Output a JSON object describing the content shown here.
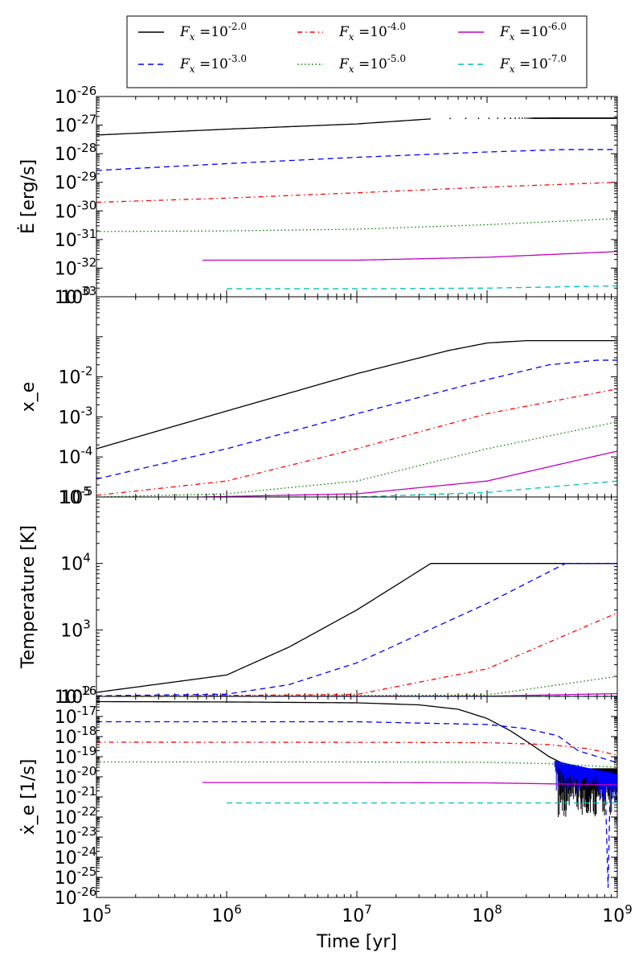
{
  "legend": {
    "placement": "top",
    "entries": [
      {
        "label": "F_x = 10^-2.0",
        "base": "10",
        "exp": "-2.0",
        "color": "#000000",
        "dash": "solid"
      },
      {
        "label": "F_x = 10^-3.0",
        "base": "10",
        "exp": "-3.0",
        "color": "#0000ff",
        "dash": "dashed"
      },
      {
        "label": "F_x = 10^-4.0",
        "base": "10",
        "exp": "-4.0",
        "color": "#ff0000",
        "dash": "dashdot"
      },
      {
        "label": "F_x = 10^-5.0",
        "base": "10",
        "exp": "-5.0",
        "color": "#008000",
        "dash": "dotted"
      },
      {
        "label": "F_x = 10^-6.0",
        "base": "10",
        "exp": "-6.0",
        "color": "#bf00bf",
        "dash": "solid"
      },
      {
        "label": "F_x = 10^-7.0",
        "base": "10",
        "exp": "-7.0",
        "color": "#00bfbf",
        "dash": "dashed"
      }
    ]
  },
  "chart_data": [
    {
      "type": "line",
      "x_scale": "log",
      "y_scale": "log",
      "xlabel": "",
      "ylabel": "Ė [erg/s]",
      "xlim": [
        100000,
        1000000000
      ],
      "ylim": [
        1e-33,
        1e-26
      ],
      "yticks": [
        {
          "base": "10",
          "exp": "-26",
          "value": -26
        },
        {
          "base": "10",
          "exp": "-27",
          "value": -27
        },
        {
          "base": "10",
          "exp": "-28",
          "value": -28
        },
        {
          "base": "10",
          "exp": "-29",
          "value": -29
        },
        {
          "base": "10",
          "exp": "-30",
          "value": -30
        },
        {
          "base": "10",
          "exp": "-31",
          "value": -31
        },
        {
          "base": "10",
          "exp": "-32",
          "value": -32
        },
        {
          "base": "10",
          "exp": "-33",
          "value": -33
        }
      ],
      "series": [
        {
          "name": "F_x = 10^-2.0",
          "x": [
            100000,
            1000000,
            10000000,
            37000000
          ],
          "y": [
            4.5e-28,
            7.2e-28,
            1.1e-27,
            1.65e-27
          ]
        },
        {
          "name": "F_x = 10^-2.0 (sparse)",
          "x": [
            52000000,
            100000000,
            200000000,
            400000000,
            700000000,
            1000000000
          ],
          "y": [
            1.7e-27,
            1.72e-27,
            1.74e-27,
            1.75e-27,
            1.75e-27,
            1.75e-27
          ]
        },
        {
          "name": "F_x = 10^-3.0",
          "x": [
            100000,
            1000000,
            10000000,
            100000000,
            400000000,
            1000000000
          ],
          "y": [
            2.6e-29,
            4.5e-29,
            7.5e-29,
            1.15e-28,
            1.4e-28,
            1.4e-28
          ]
        },
        {
          "name": "F_x = 10^-4.0",
          "x": [
            100000,
            1000000,
            10000000,
            100000000,
            1000000000
          ],
          "y": [
            2e-30,
            2.8e-30,
            4.3e-30,
            6.8e-30,
            1e-29
          ]
        },
        {
          "name": "F_x = 10^-5.0",
          "x": [
            100000,
            1000000,
            10000000,
            100000000,
            1000000000
          ],
          "y": [
            1.9e-31,
            2e-31,
            2.3e-31,
            3.3e-31,
            5.4e-31
          ]
        },
        {
          "name": "F_x = 10^-6.0",
          "x": [
            650000,
            10000000,
            100000000,
            1000000000
          ],
          "y": [
            1.9e-32,
            1.9e-32,
            2.4e-32,
            3.8e-32
          ]
        },
        {
          "name": "F_x = 10^-7.0",
          "x": [
            1000000,
            10000000,
            100000000,
            1000000000
          ],
          "y": [
            1.9e-33,
            1.9e-33,
            2e-33,
            2.4e-33
          ]
        }
      ]
    },
    {
      "type": "line",
      "x_scale": "log",
      "y_scale": "log",
      "xlabel": "",
      "ylabel": "x_e",
      "xlim": [
        100000,
        1000000000
      ],
      "ylim": [
        1e-05,
        1
      ],
      "yticks": [
        {
          "base": "10",
          "exp": "0",
          "value": 0
        },
        {
          "base": "10",
          "exp": "-2",
          "value": -2
        },
        {
          "base": "10",
          "exp": "-3",
          "value": -3
        },
        {
          "base": "10",
          "exp": "-4",
          "value": -4
        },
        {
          "base": "10",
          "exp": "-5",
          "value": -5
        }
      ],
      "series": [
        {
          "name": "F_x = 10^-2.0",
          "x": [
            100000,
            1000000,
            10000000,
            50000000,
            100000000,
            200000000,
            1000000000
          ],
          "y": [
            0.00016,
            0.0014,
            0.012,
            0.045,
            0.07,
            0.08,
            0.08
          ]
        },
        {
          "name": "F_x = 10^-3.0",
          "x": [
            100000,
            1000000,
            10000000,
            100000000,
            300000000,
            700000000,
            1000000000
          ],
          "y": [
            2.8e-05,
            0.00016,
            0.0012,
            0.0085,
            0.02,
            0.026,
            0.026
          ]
        },
        {
          "name": "F_x = 10^-4.0",
          "x": [
            100000,
            1000000,
            10000000,
            100000000,
            1000000000
          ],
          "y": [
            1.1e-05,
            2.5e-05,
            0.00016,
            0.0012,
            0.005
          ]
        },
        {
          "name": "F_x = 10^-5.0",
          "x": [
            100000,
            1000000,
            10000000,
            100000000,
            1000000000
          ],
          "y": [
            1e-05,
            1.2e-05,
            2.5e-05,
            0.00016,
            0.00075
          ]
        },
        {
          "name": "F_x = 10^-6.0",
          "x": [
            650000,
            10000000,
            100000000,
            1000000000
          ],
          "y": [
            1e-05,
            1.2e-05,
            2.5e-05,
            0.00014
          ]
        },
        {
          "name": "F_x = 10^-7.0",
          "x": [
            1000000,
            10000000,
            100000000,
            1000000000
          ],
          "y": [
            1e-05,
            1e-05,
            1.3e-05,
            2.5e-05
          ]
        }
      ]
    },
    {
      "type": "line",
      "x_scale": "log",
      "y_scale": "log",
      "xlabel": "",
      "ylabel": "Temperature [K]",
      "xlim": [
        100000,
        1000000000
      ],
      "ylim": [
        100,
        100000
      ],
      "yticks": [
        {
          "base": "10",
          "exp": "5",
          "value": 5
        },
        {
          "base": "10",
          "exp": "4",
          "value": 4
        },
        {
          "base": "10",
          "exp": "3",
          "value": 3
        },
        {
          "base": "10",
          "exp": "2",
          "value": 2
        }
      ],
      "series": [
        {
          "name": "F_x = 10^-2.0",
          "x": [
            100000,
            1000000,
            3000000,
            10000000,
            37000000,
            1000000000
          ],
          "y": [
            115,
            210,
            550,
            2000,
            10000,
            10000
          ]
        },
        {
          "name": "F_x = 10^-3.0",
          "x": [
            100000,
            1000000,
            3000000,
            10000000,
            100000000,
            400000000,
            1000000000
          ],
          "y": [
            102,
            108,
            150,
            320,
            2500,
            10000,
            10000
          ]
        },
        {
          "name": "F_x = 10^-4.0",
          "x": [
            100000,
            10000000,
            100000000,
            1000000000
          ],
          "y": [
            100,
            107,
            260,
            1800
          ]
        },
        {
          "name": "F_x = 10^-5.0",
          "x": [
            100000,
            100000000,
            1000000000
          ],
          "y": [
            100,
            105,
            200
          ]
        },
        {
          "name": "F_x = 10^-6.0",
          "x": [
            650000,
            100000000,
            1000000000
          ],
          "y": [
            100,
            101,
            110
          ]
        },
        {
          "name": "F_x = 10^-7.0",
          "x": [
            1000000,
            1000000000
          ],
          "y": [
            100,
            101
          ]
        }
      ]
    },
    {
      "type": "line",
      "x_scale": "log",
      "y_scale": "log",
      "xlabel": "Time [yr]",
      "ylabel": "ẋ_e [1/s]",
      "xlim": [
        100000,
        1000000000
      ],
      "ylim": [
        1e-26,
        1e-16
      ],
      "xticks": [
        {
          "base": "10",
          "exp": "5",
          "value": 5
        },
        {
          "base": "10",
          "exp": "6",
          "value": 6
        },
        {
          "base": "10",
          "exp": "7",
          "value": 7
        },
        {
          "base": "10",
          "exp": "8",
          "value": 8
        },
        {
          "base": "10",
          "exp": "9",
          "value": 9
        }
      ],
      "yticks": [
        {
          "base": "10",
          "exp": "-16",
          "value": -16
        },
        {
          "base": "10",
          "exp": "-17",
          "value": -17
        },
        {
          "base": "10",
          "exp": "-18",
          "value": -18
        },
        {
          "base": "10",
          "exp": "-19",
          "value": -19
        },
        {
          "base": "10",
          "exp": "-20",
          "value": -20
        },
        {
          "base": "10",
          "exp": "-21",
          "value": -21
        },
        {
          "base": "10",
          "exp": "-22",
          "value": -22
        },
        {
          "base": "10",
          "exp": "-23",
          "value": -23
        },
        {
          "base": "10",
          "exp": "-24",
          "value": -24
        },
        {
          "base": "10",
          "exp": "-25",
          "value": -25
        },
        {
          "base": "10",
          "exp": "-26",
          "value": -26
        }
      ],
      "series": [
        {
          "name": "F_x = 10^-2.0",
          "x": [
            100000,
            1000000,
            10000000,
            30000000,
            60000000,
            100000000,
            150000000,
            200000000,
            300000000,
            400000000,
            600000000,
            1000000000
          ],
          "y": [
            5.5e-17,
            5.3e-17,
            4.8e-17,
            3.8e-17,
            2.3e-17,
            8e-18,
            2e-18,
            6e-19,
            1e-19,
            4e-20,
            2.5e-20,
            2.5e-20
          ],
          "noise": {
            "x_start": 350000000,
            "low": 1e-22,
            "high": 5e-20
          }
        },
        {
          "name": "F_x = 10^-3.0",
          "x": [
            100000,
            10000000,
            100000000,
            200000000,
            350000000,
            500000000,
            1000000000
          ],
          "y": [
            5.5e-18,
            5.5e-18,
            4e-18,
            2.5e-18,
            1.1e-18,
            2e-19,
            5e-20
          ],
          "spike": {
            "x": 850000000,
            "y": 3e-26
          }
        },
        {
          "name": "F_x = 10^-4.0",
          "x": [
            100000,
            10000000,
            100000000,
            300000000,
            600000000,
            1000000000
          ],
          "y": [
            5.3e-19,
            5.2e-19,
            5e-19,
            4e-19,
            2.5e-19,
            1.2e-19
          ]
        },
        {
          "name": "F_x = 10^-5.0",
          "x": [
            100000,
            10000000,
            100000000,
            300000000,
            1000000000
          ],
          "y": [
            5.5e-20,
            5.5e-20,
            5.3e-20,
            4.5e-20,
            3e-20
          ]
        },
        {
          "name": "F_x = 10^-6.0",
          "x": [
            650000,
            10000000,
            100000000,
            1000000000
          ],
          "y": [
            5.2e-21,
            5.2e-21,
            5e-21,
            4e-21
          ]
        },
        {
          "name": "F_x = 10^-7.0",
          "x": [
            1000000,
            100000000,
            1000000000
          ],
          "y": [
            5e-22,
            5e-22,
            5e-22
          ]
        }
      ]
    }
  ]
}
